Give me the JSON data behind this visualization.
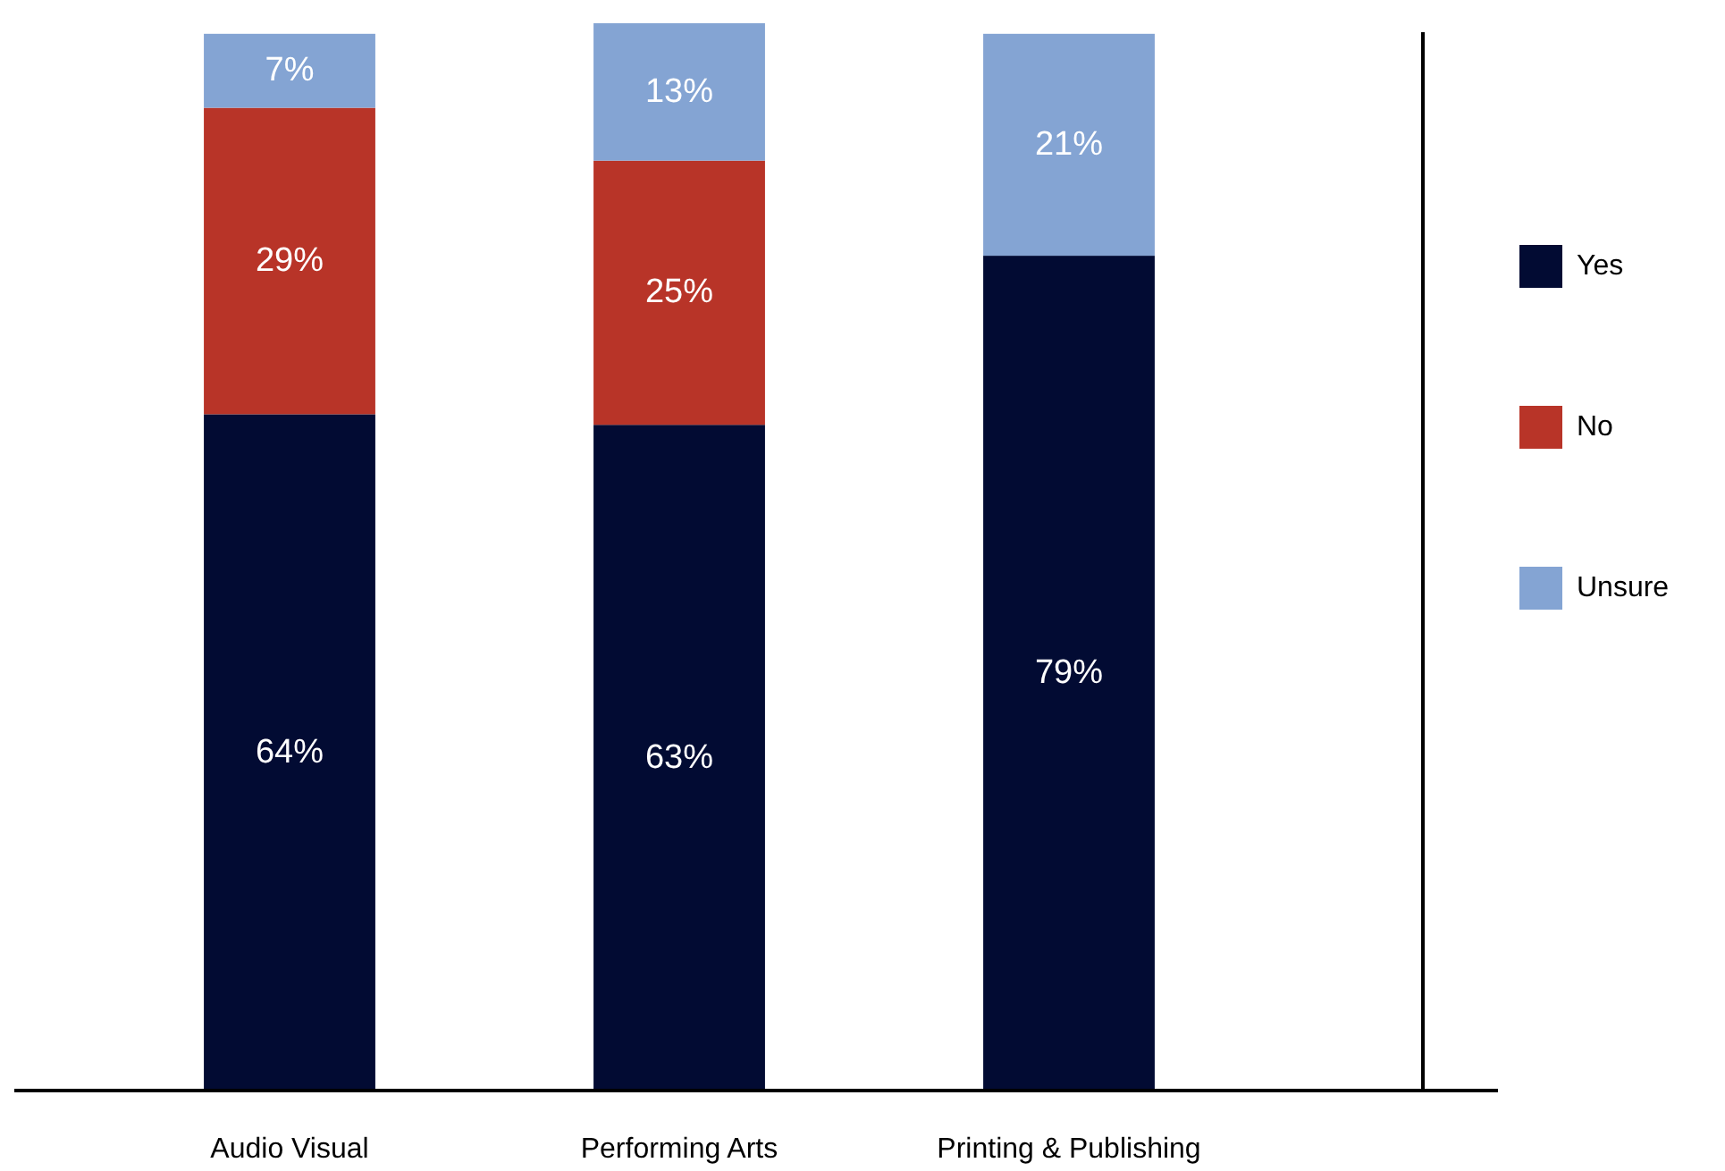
{
  "chart_data": {
    "type": "bar",
    "stacked": true,
    "categories": [
      "Audio Visual",
      "Performing Arts",
      "Printing & Publishing"
    ],
    "series": [
      {
        "name": "Yes",
        "color": "#020b33",
        "values": [
          64,
          63,
          79
        ],
        "value_labels": [
          "64%",
          "63%",
          "79%"
        ]
      },
      {
        "name": "No",
        "color": "#b83428",
        "values": [
          29,
          25,
          null
        ],
        "value_labels": [
          "29%",
          "25%",
          null
        ]
      },
      {
        "name": "Unsure",
        "color": "#84a4d3",
        "values": [
          7,
          13,
          21
        ],
        "value_labels": [
          "7%",
          "13%",
          "21%"
        ]
      }
    ],
    "legend": "right"
  }
}
